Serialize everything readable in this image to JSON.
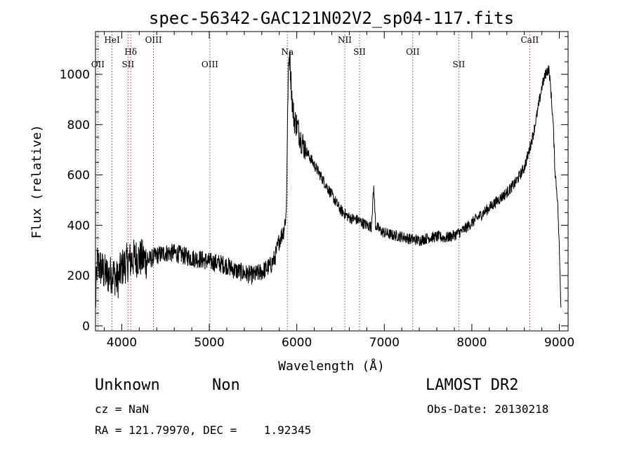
{
  "chart_data": {
    "type": "line",
    "title": "spec-56342-GAC121N02V2_sp04-117.fits",
    "xlabel": "Wavelength (Å)",
    "ylabel": "Flux (relative)",
    "xlim": [
      3700,
      9100
    ],
    "ylim": [
      -20,
      1170
    ],
    "x_ticks": [
      4000,
      5000,
      6000,
      7000,
      8000,
      9000
    ],
    "x_tick_labels": [
      "4000",
      "5000",
      "6000",
      "7000",
      "8000",
      "9000"
    ],
    "y_ticks": [
      0,
      200,
      400,
      600,
      800,
      1000
    ],
    "y_tick_labels": [
      "0",
      "200",
      "400",
      "600",
      "800",
      "1000"
    ],
    "grid": false,
    "series": [
      {
        "color": "#000000",
        "noise": 25,
        "x": [
          3700,
          3720,
          3760,
          3800,
          3850,
          3900,
          3950,
          4000,
          4050,
          4100,
          4150,
          4200,
          4300,
          4400,
          4500,
          4600,
          4700,
          4800,
          4900,
          5000,
          5100,
          5200,
          5300,
          5400,
          5500,
          5600,
          5700,
          5750,
          5800,
          5850,
          5880,
          5900,
          5915,
          5930,
          5950,
          5970,
          6000,
          6050,
          6100,
          6200,
          6300,
          6400,
          6500,
          6600,
          6700,
          6800,
          6850,
          6880,
          6900,
          6950,
          7000,
          7100,
          7200,
          7300,
          7400,
          7500,
          7600,
          7700,
          7800,
          7900,
          8000,
          8100,
          8200,
          8300,
          8400,
          8500,
          8550,
          8600,
          8650,
          8700,
          8750,
          8800,
          8850,
          8880,
          8900,
          8930,
          8950,
          8980,
          9000,
          9020
        ],
        "y": [
          80,
          250,
          230,
          210,
          200,
          210,
          180,
          230,
          250,
          260,
          270,
          270,
          260,
          280,
          290,
          290,
          280,
          270,
          265,
          255,
          250,
          240,
          220,
          210,
          200,
          215,
          240,
          270,
          340,
          380,
          450,
          950,
          1100,
          1000,
          880,
          820,
          800,
          740,
          700,
          640,
          580,
          520,
          460,
          430,
          420,
          400,
          395,
          550,
          400,
          380,
          370,
          360,
          355,
          345,
          340,
          350,
          355,
          350,
          360,
          380,
          410,
          440,
          470,
          500,
          530,
          570,
          600,
          630,
          690,
          760,
          850,
          950,
          1010,
          1020,
          950,
          800,
          620,
          500,
          300,
          60
        ]
      }
    ],
    "lines": [
      {
        "label": "OII",
        "wave": 3727,
        "row": 3
      },
      {
        "label": "HeI",
        "wave": 3889,
        "row": 1
      },
      {
        "label": "SII",
        "wave": 4072,
        "row": 3
      },
      {
        "label": "Hδ",
        "wave": 4102,
        "row": 2
      },
      {
        "label": "OIII",
        "wave": 4363,
        "row": 1
      },
      {
        "label": "OIII",
        "wave": 5007,
        "row": 3
      },
      {
        "label": "Na",
        "wave": 5893,
        "row": 2
      },
      {
        "label": "NII",
        "wave": 6548,
        "row": 1
      },
      {
        "label": "SII",
        "wave": 6717,
        "row": 2
      },
      {
        "label": "OII",
        "wave": 7325,
        "row": 2
      },
      {
        "label": "SII",
        "wave": 7851,
        "row": 3
      },
      {
        "label": "CaII",
        "wave": 8662,
        "row": 1
      }
    ]
  },
  "info": {
    "class": "Unknown",
    "subclass": "Non",
    "survey": "LAMOST DR2",
    "cz": "cz = NaN",
    "obs_date": "Obs-Date: 20130218",
    "radec": "RA = 121.79970, DEC =    1.92345"
  }
}
